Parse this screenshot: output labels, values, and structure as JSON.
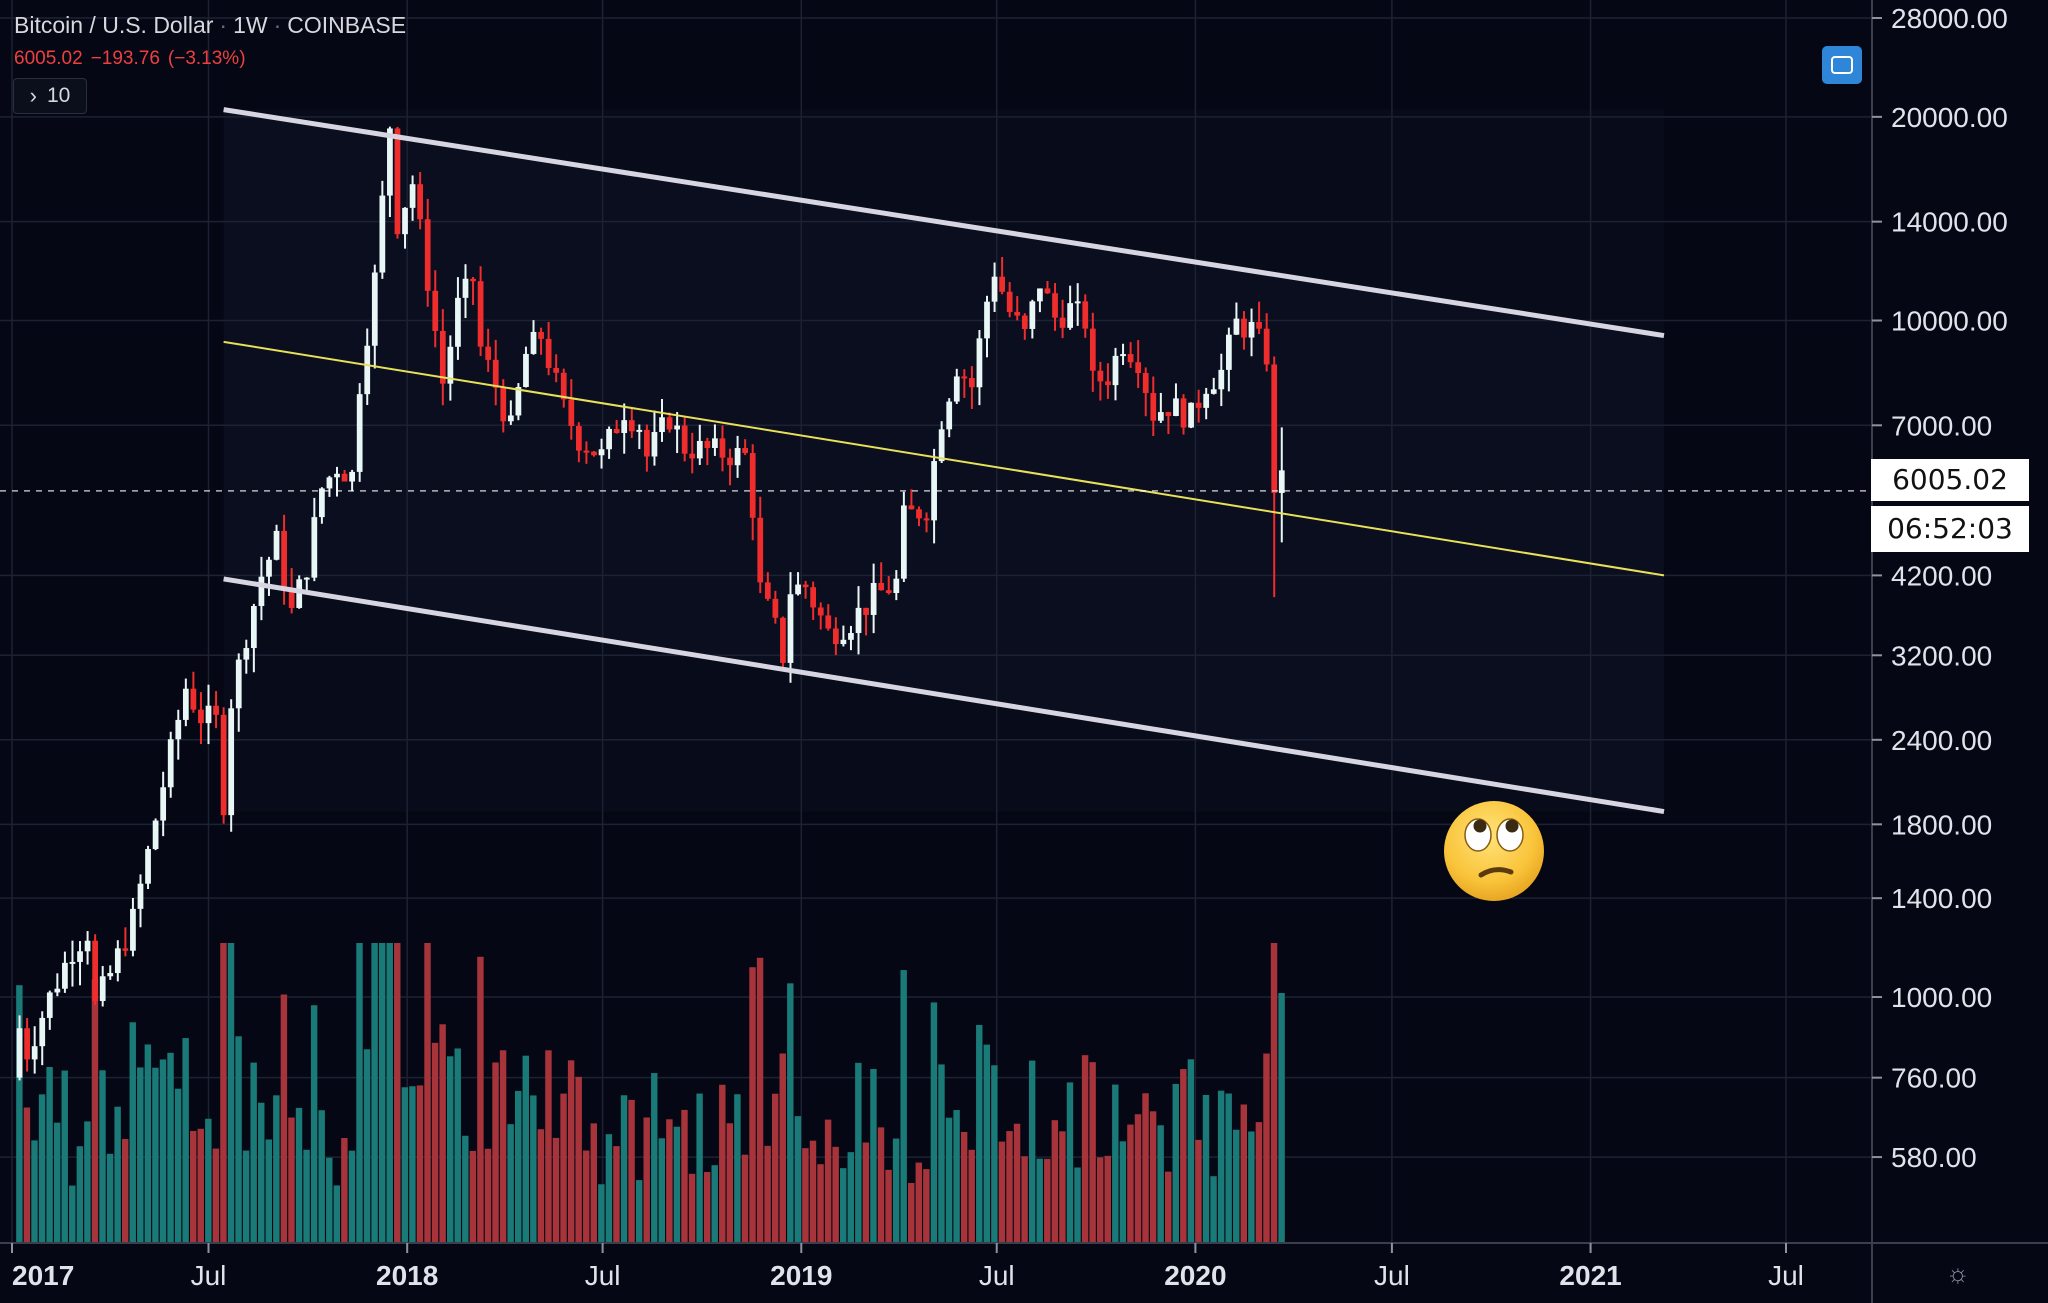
{
  "header": {
    "title": "Bitcoin / U.S. Dollar",
    "interval": "1W",
    "exchange": "COINBASE",
    "last_price": "6005.02",
    "change": "−193.76",
    "change_pct": "(−3.13%)",
    "indicator_count": "10"
  },
  "price_tag": {
    "price": "6005.02",
    "countdown": "06:52:03"
  },
  "colors": {
    "up": "#e9f6f6",
    "down": "#ef2d2d",
    "vol_up": "#1a7a78",
    "vol_down": "#a8343b",
    "channel": "#d7d5e2",
    "midline": "#e8e05a",
    "background": "#050814"
  },
  "icons": {
    "indicator": "chevron-right-icon",
    "fullscreen": "fullscreen-icon",
    "settings": "gear-icon",
    "emoji": "face-with-rolling-eyes-icon"
  },
  "chart_data": {
    "type": "candlestick",
    "title": "Bitcoin / U.S. Dollar",
    "y_scale": "log",
    "ylim": [
      515,
      28000
    ],
    "xlim": [
      "2016-12-31",
      "2021-08-20"
    ],
    "y_ticks": [
      28000,
      20000,
      14000,
      10000,
      7000,
      4200,
      3200,
      2400,
      1800,
      1400,
      1000,
      760,
      580
    ],
    "y_tick_labels": [
      "28000.00",
      "20000.00",
      "14000.00",
      "10000.00",
      "7000.00",
      "4200.00",
      "3200.00",
      "2400.00",
      "1800.00",
      "1400.00",
      "1000.00",
      "760.00",
      "580.00"
    ],
    "x_ticks": [
      {
        "date": "2016-12-31",
        "label": "2017"
      },
      {
        "date": "2017-07-01",
        "label": "Jul"
      },
      {
        "date": "2018-01-01",
        "label": "2018"
      },
      {
        "date": "2018-07-01",
        "label": "Jul"
      },
      {
        "date": "2019-01-01",
        "label": "2019"
      },
      {
        "date": "2019-07-01",
        "label": "Jul"
      },
      {
        "date": "2020-01-01",
        "label": "2020"
      },
      {
        "date": "2020-07-01",
        "label": "Jul"
      },
      {
        "date": "2021-01-01",
        "label": "2021"
      },
      {
        "date": "2021-07-01",
        "label": "Jul"
      }
    ],
    "price_path": [
      [
        "2016-12-31",
        760
      ],
      [
        "2017-01-07",
        900
      ],
      [
        "2017-01-14",
        830
      ],
      [
        "2017-02-04",
        1000
      ],
      [
        "2017-02-25",
        1180
      ],
      [
        "2017-03-11",
        1250
      ],
      [
        "2017-03-18",
        970
      ],
      [
        "2017-04-01",
        1080
      ],
      [
        "2017-04-22",
        1300
      ],
      [
        "2017-05-06",
        1630
      ],
      [
        "2017-05-20",
        2060
      ],
      [
        "2017-05-27",
        2300
      ],
      [
        "2017-06-10",
        2870
      ],
      [
        "2017-06-24",
        2600
      ],
      [
        "2017-07-08",
        2550
      ],
      [
        "2017-07-15",
        1950
      ],
      [
        "2017-07-22",
        2750
      ],
      [
        "2017-08-05",
        3450
      ],
      [
        "2017-08-19",
        4200
      ],
      [
        "2017-09-02",
        4700
      ],
      [
        "2017-09-16",
        3700
      ],
      [
        "2017-09-30",
        4350
      ],
      [
        "2017-10-14",
        5650
      ],
      [
        "2017-10-28",
        6100
      ],
      [
        "2017-11-11",
        5900
      ],
      [
        "2017-11-18",
        8100
      ],
      [
        "2017-12-02",
        11500
      ],
      [
        "2017-12-16",
        19500
      ],
      [
        "2017-12-23",
        14000
      ],
      [
        "2018-01-06",
        16000
      ],
      [
        "2018-01-20",
        11500
      ],
      [
        "2018-02-03",
        8100
      ],
      [
        "2018-02-17",
        10500
      ],
      [
        "2018-03-03",
        11500
      ],
      [
        "2018-03-10",
        9100
      ],
      [
        "2018-03-24",
        8000
      ],
      [
        "2018-04-07",
        6900
      ],
      [
        "2018-04-21",
        8900
      ],
      [
        "2018-05-05",
        9500
      ],
      [
        "2018-05-26",
        7400
      ],
      [
        "2018-06-09",
        6700
      ],
      [
        "2018-06-30",
        6300
      ],
      [
        "2018-07-21",
        7400
      ],
      [
        "2018-08-04",
        7000
      ],
      [
        "2018-08-11",
        6300
      ],
      [
        "2018-09-01",
        7200
      ],
      [
        "2018-09-15",
        6500
      ],
      [
        "2018-10-13",
        6400
      ],
      [
        "2018-11-10",
        6300
      ],
      [
        "2018-11-17",
        5300
      ],
      [
        "2018-11-24",
        4000
      ],
      [
        "2018-12-08",
        3500
      ],
      [
        "2018-12-15",
        3200
      ],
      [
        "2018-12-22",
        4000
      ],
      [
        "2019-01-05",
        4050
      ],
      [
        "2019-01-26",
        3450
      ],
      [
        "2019-02-16",
        3600
      ],
      [
        "2019-03-09",
        3900
      ],
      [
        "2019-03-30",
        4100
      ],
      [
        "2019-04-06",
        5100
      ],
      [
        "2019-04-27",
        5300
      ],
      [
        "2019-05-11",
        7200
      ],
      [
        "2019-05-25",
        8600
      ],
      [
        "2019-06-08",
        8000
      ],
      [
        "2019-06-22",
        10700
      ],
      [
        "2019-06-29",
        11900
      ],
      [
        "2019-07-13",
        10300
      ],
      [
        "2019-07-27",
        9500
      ],
      [
        "2019-08-10",
        11400
      ],
      [
        "2019-08-24",
        10100
      ],
      [
        "2019-09-07",
        10400
      ],
      [
        "2019-09-21",
        10000
      ],
      [
        "2019-09-28",
        8100
      ],
      [
        "2019-10-12",
        8300
      ],
      [
        "2019-10-26",
        9300
      ],
      [
        "2019-11-09",
        8800
      ],
      [
        "2019-11-23",
        7300
      ],
      [
        "2019-12-07",
        7500
      ],
      [
        "2019-12-28",
        7200
      ],
      [
        "2020-01-11",
        8100
      ],
      [
        "2020-01-25",
        8400
      ],
      [
        "2020-02-08",
        9900
      ],
      [
        "2020-02-22",
        9700
      ],
      [
        "2020-03-07",
        8900
      ],
      [
        "2020-03-14",
        5400
      ],
      [
        "2020-03-21",
        6005
      ]
    ],
    "volume_note": "volume histogram at bottom, up weeks teal, down weeks red",
    "drawings": [
      {
        "type": "trendline",
        "name": "upper channel",
        "from": [
          "2017-07-15",
          20500
        ],
        "to": [
          "2021-03-10",
          9500
        ]
      },
      {
        "type": "trendline",
        "name": "lower channel",
        "from": [
          "2017-07-15",
          4150
        ],
        "to": [
          "2021-03-10",
          1880
        ]
      },
      {
        "type": "trendline",
        "name": "midline",
        "from": [
          "2017-07-15",
          9300
        ],
        "to": [
          "2021-03-10",
          4200
        ]
      }
    ]
  }
}
